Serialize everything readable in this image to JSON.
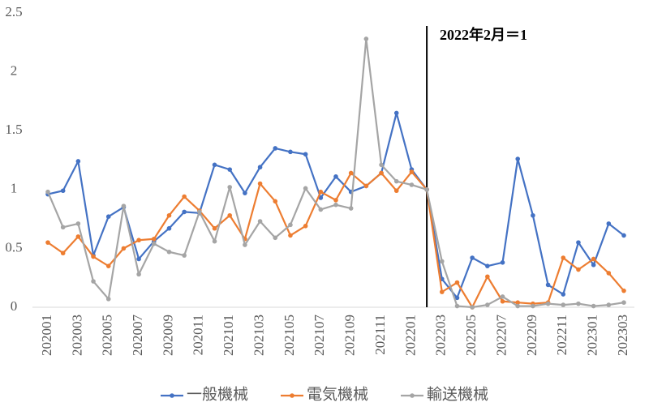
{
  "chart_data": {
    "type": "line",
    "annotation": "2022年2月＝1",
    "categories": [
      "202001",
      null,
      "202003",
      null,
      "202005",
      null,
      "202007",
      null,
      "202009",
      null,
      "202011",
      null,
      "202101",
      null,
      "202103",
      null,
      "202105",
      null,
      "202107",
      null,
      "202109",
      null,
      "202111",
      null,
      "202201",
      null,
      "202203",
      null,
      "202205",
      null,
      "202207",
      null,
      "202209",
      null,
      "202211",
      null,
      "202301",
      null,
      "202303"
    ],
    "series": [
      {
        "name": "一般機械",
        "color": "#4472c4",
        "values": [
          0.96,
          0.99,
          1.24,
          0.44,
          0.77,
          0.85,
          0.41,
          0.56,
          0.67,
          0.81,
          0.8,
          1.21,
          1.17,
          0.97,
          1.19,
          1.35,
          1.32,
          1.3,
          0.93,
          1.11,
          0.98,
          1.03,
          1.14,
          1.65,
          1.17,
          1.0,
          0.24,
          0.08,
          0.42,
          0.35,
          0.38,
          1.26,
          0.78,
          0.19,
          0.11,
          0.55,
          0.36,
          0.71,
          0.61
        ]
      },
      {
        "name": "電気機械",
        "color": "#ed7d31",
        "values": [
          0.55,
          0.46,
          0.6,
          0.43,
          0.35,
          0.5,
          0.57,
          0.58,
          0.78,
          0.94,
          0.82,
          0.67,
          0.78,
          0.58,
          1.05,
          0.9,
          0.61,
          0.69,
          0.98,
          0.91,
          1.14,
          1.03,
          1.14,
          0.99,
          1.15,
          1.0,
          0.13,
          0.21,
          0.0,
          0.26,
          0.05,
          0.04,
          0.03,
          0.04,
          0.42,
          0.32,
          0.41,
          0.29,
          0.14
        ]
      },
      {
        "name": "輸送機械",
        "color": "#a5a5a5",
        "values": [
          0.98,
          0.68,
          0.71,
          0.22,
          0.07,
          0.86,
          0.28,
          0.54,
          0.47,
          0.44,
          0.81,
          0.56,
          1.02,
          0.53,
          0.73,
          0.59,
          0.7,
          1.01,
          0.83,
          0.87,
          0.84,
          2.28,
          1.21,
          1.07,
          1.04,
          1.0,
          0.39,
          0.01,
          0.0,
          0.02,
          0.09,
          0.01,
          0.01,
          0.03,
          0.02,
          0.03,
          0.01,
          0.02,
          0.04
        ]
      }
    ],
    "ylim": [
      0,
      2.5
    ],
    "yticks": [
      0,
      0.5,
      1,
      1.5,
      2,
      2.5
    ],
    "grid": false,
    "legend": "bottom"
  }
}
